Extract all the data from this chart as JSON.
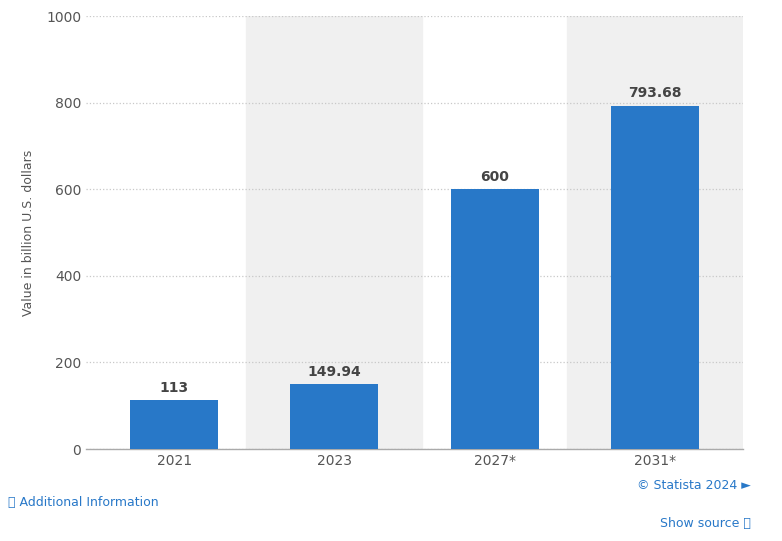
{
  "categories": [
    "2021",
    "2023",
    "2027*",
    "2031*"
  ],
  "values": [
    113,
    149.94,
    600,
    793.68
  ],
  "labels": [
    "113",
    "149.94",
    "600",
    "793.68"
  ],
  "bar_color": "#2878c8",
  "bar_width": 0.55,
  "ylim": [
    0,
    1000
  ],
  "yticks": [
    0,
    200,
    400,
    600,
    800,
    1000
  ],
  "ylabel": "Value in billion U.S. dollars",
  "ylabel_fontsize": 9,
  "tick_fontsize": 10,
  "label_fontsize": 10,
  "grid_color": "#c8c8c8",
  "bg_band_color": "#f0f0f0",
  "plot_bg_color": "#ffffff",
  "fig_bg_color": "#ffffff",
  "footer_left": "ⓘ Additional Information",
  "footer_right_1": "© Statista 2024 ►",
  "footer_right_2": "Show source ⓘ",
  "footer_color": "#2878c8",
  "footer_fontsize": 9
}
